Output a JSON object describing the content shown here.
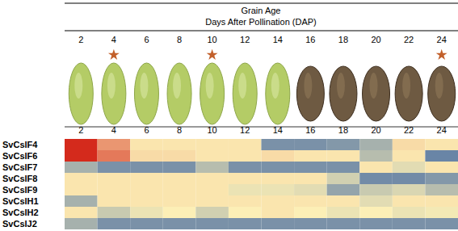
{
  "chart_data": {
    "type": "heatmap",
    "title": "Grain Age",
    "subtitle": "Days After Pollination (DAP)",
    "categories": [
      2,
      4,
      6,
      8,
      10,
      12,
      14,
      16,
      18,
      20,
      22,
      24
    ],
    "rows": [
      "SvCslF4",
      "SvCslF6",
      "SvCslF7",
      "SvCslF8",
      "SvCslF9",
      "SvCslH1",
      "SvCslH2",
      "SvCslJ2"
    ],
    "highlighted": [
      4,
      10,
      24
    ],
    "zlim": [
      -2,
      2
    ],
    "values": [
      [
        2.0,
        0.9,
        0.1,
        0.1,
        0.1,
        0.1,
        -1.5,
        -1.5,
        -1.4,
        -1.0,
        0.2,
        0.1
      ],
      [
        2.0,
        1.2,
        0.2,
        0.2,
        0.1,
        0.1,
        0.2,
        0.1,
        0.1,
        -0.8,
        0.1,
        -1.7
      ],
      [
        -1.0,
        -1.5,
        -1.5,
        -1.5,
        -0.8,
        -1.5,
        -1.5,
        -1.5,
        -1.5,
        0.1,
        -0.3,
        0.1
      ],
      [
        0.1,
        0.1,
        0.1,
        0.1,
        0.1,
        0.1,
        0.1,
        0.1,
        -0.5,
        -1.6,
        -1.6,
        -1.4
      ],
      [
        0.1,
        0.1,
        0.1,
        0.1,
        0.1,
        -0.2,
        -0.2,
        -0.3,
        -1.2,
        -0.6,
        -0.4,
        -0.8
      ],
      [
        -1.0,
        0.1,
        0.1,
        0.1,
        0.1,
        0.1,
        0.1,
        0.1,
        0.1,
        -0.3,
        0.1,
        0.1
      ],
      [
        0.1,
        -0.6,
        -0.2,
        0.0,
        -0.5,
        0.0,
        0.1,
        0.0,
        -0.2,
        0.0,
        -0.2,
        -0.1
      ],
      [
        -1.0,
        -1.5,
        -1.5,
        -1.5,
        -1.5,
        -1.5,
        -1.5,
        -1.5,
        -1.5,
        -1.5,
        -1.5,
        -1.5
      ]
    ]
  }
}
